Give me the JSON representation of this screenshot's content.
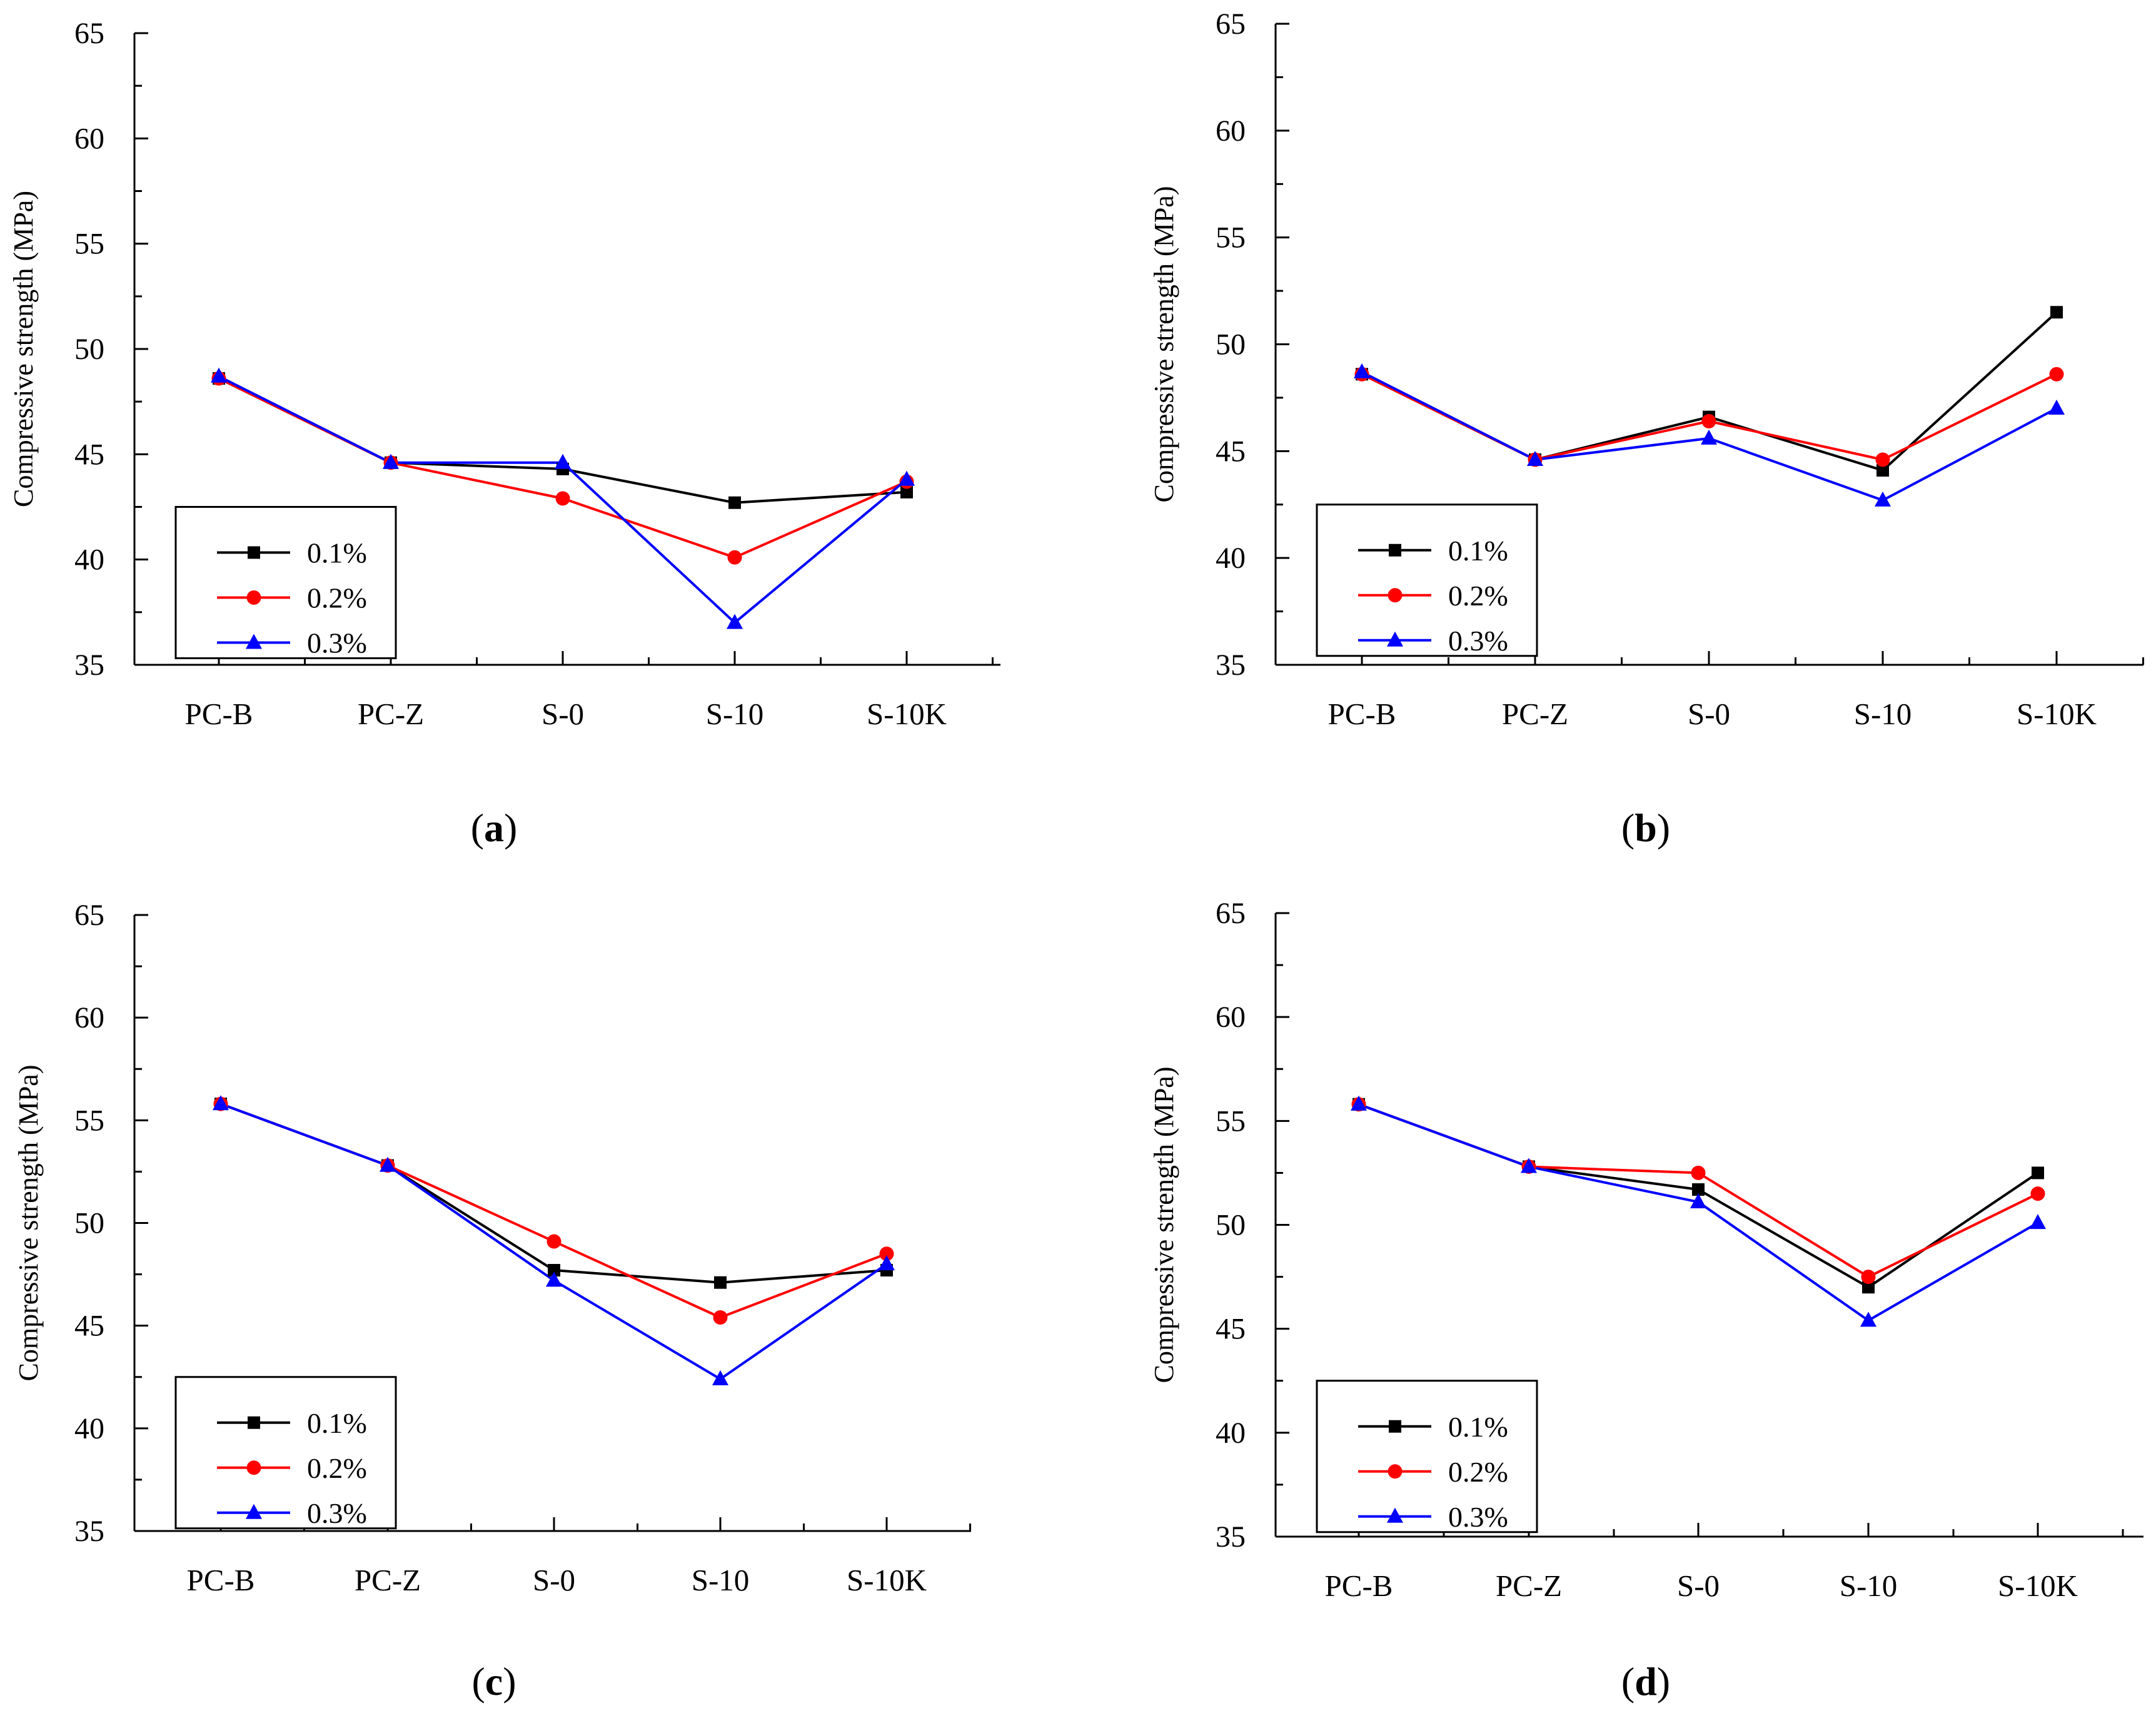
{
  "colors": {
    "0.1%": "#000000",
    "0.2%": "#ff0000",
    "0.3%": "#0000ff",
    "axes": "#000000",
    "background": "#ffffff"
  },
  "markers": {
    "0.1%": "square",
    "0.2%": "circle",
    "0.3%": "triangle-up"
  },
  "chart_data": [
    {
      "panel": "a",
      "type": "line",
      "categories": [
        "PC-B",
        "PC-Z",
        "S-0",
        "S-10",
        "S-10K"
      ],
      "ylabel": "Compressive strength (MPa)",
      "xlabel": "",
      "ylim": [
        35,
        65
      ],
      "yticks": [
        35,
        40,
        45,
        50,
        55,
        60,
        65
      ],
      "legend": "bottom-left",
      "series": [
        {
          "name": "0.1%",
          "values": [
            48.6,
            44.6,
            44.3,
            42.7,
            43.2
          ]
        },
        {
          "name": "0.2%",
          "values": [
            48.6,
            44.6,
            42.9,
            40.1,
            43.7
          ]
        },
        {
          "name": "0.3%",
          "values": [
            48.7,
            44.6,
            44.6,
            37.0,
            43.8
          ]
        }
      ]
    },
    {
      "panel": "b",
      "type": "line",
      "categories": [
        "PC-B",
        "PC-Z",
        "S-0",
        "S-10",
        "S-10K"
      ],
      "ylabel": "Compressive strength (MPa)",
      "xlabel": "",
      "ylim": [
        35,
        65
      ],
      "yticks": [
        35,
        40,
        45,
        50,
        55,
        60,
        65
      ],
      "legend": "bottom-left",
      "series": [
        {
          "name": "0.1%",
          "values": [
            48.6,
            44.6,
            46.6,
            44.1,
            51.5
          ]
        },
        {
          "name": "0.2%",
          "values": [
            48.6,
            44.6,
            46.4,
            44.6,
            48.6
          ]
        },
        {
          "name": "0.3%",
          "values": [
            48.7,
            44.6,
            45.6,
            42.7,
            47.0
          ]
        }
      ]
    },
    {
      "panel": "c",
      "type": "line",
      "categories": [
        "PC-B",
        "PC-Z",
        "S-0",
        "S-10",
        "S-10K"
      ],
      "ylabel": "Compressive strength (MPa)",
      "xlabel": "",
      "ylim": [
        35,
        65
      ],
      "yticks": [
        35,
        40,
        45,
        50,
        55,
        60,
        65
      ],
      "legend": "bottom-left",
      "series": [
        {
          "name": "0.1%",
          "values": [
            55.8,
            52.8,
            47.7,
            47.1,
            47.7
          ]
        },
        {
          "name": "0.2%",
          "values": [
            55.8,
            52.8,
            49.1,
            45.4,
            48.5
          ]
        },
        {
          "name": "0.3%",
          "values": [
            55.8,
            52.8,
            47.2,
            42.4,
            48.0
          ]
        }
      ]
    },
    {
      "panel": "d",
      "type": "line",
      "categories": [
        "PC-B",
        "PC-Z",
        "S-0",
        "S-10",
        "S-10K"
      ],
      "ylabel": "Compressive strength (MPa)",
      "xlabel": "",
      "ylim": [
        35,
        65
      ],
      "yticks": [
        35,
        40,
        45,
        50,
        55,
        60,
        65
      ],
      "legend": "bottom-left",
      "series": [
        {
          "name": "0.1%",
          "values": [
            55.8,
            52.8,
            51.7,
            47.0,
            52.5
          ]
        },
        {
          "name": "0.2%",
          "values": [
            55.8,
            52.8,
            52.5,
            47.5,
            51.5
          ]
        },
        {
          "name": "0.3%",
          "values": [
            55.8,
            52.8,
            51.1,
            45.4,
            50.1
          ]
        }
      ]
    }
  ]
}
